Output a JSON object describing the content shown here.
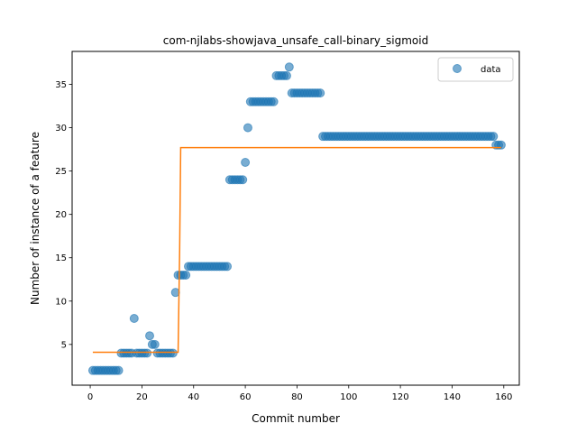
{
  "chart_data": {
    "type": "scatter",
    "title": "com-njlabs-showjava_unsafe_call-binary_sigmoid",
    "xlabel": "Commit number",
    "ylabel": "Number of instance of a feature",
    "xlim": [
      -7,
      166
    ],
    "ylim": [
      0.3,
      38.8
    ],
    "xticks": [
      0,
      20,
      40,
      60,
      80,
      100,
      120,
      140,
      160
    ],
    "yticks": [
      5,
      10,
      15,
      20,
      25,
      30,
      35
    ],
    "grid": false,
    "legend_position": "top-right",
    "legend": [
      "data"
    ],
    "series": [
      {
        "name": "data",
        "kind": "scatter",
        "color": "#1f77b4",
        "x": [
          1,
          2,
          3,
          4,
          5,
          6,
          7,
          8,
          9,
          10,
          11,
          12,
          13,
          14,
          15,
          16,
          17,
          18,
          19,
          20,
          21,
          22,
          23,
          24,
          25,
          26,
          27,
          28,
          29,
          30,
          31,
          32,
          33,
          34,
          35,
          36,
          37,
          38,
          39,
          40,
          41,
          42,
          43,
          44,
          45,
          46,
          47,
          48,
          49,
          50,
          51,
          52,
          53,
          54,
          55,
          56,
          57,
          58,
          59,
          60,
          61,
          62,
          63,
          64,
          65,
          66,
          67,
          68,
          69,
          70,
          71,
          72,
          73,
          74,
          75,
          76,
          77,
          78,
          79,
          80,
          81,
          82,
          83,
          84,
          85,
          86,
          87,
          88,
          89,
          90,
          91,
          92,
          93,
          94,
          95,
          96,
          97,
          98,
          99,
          100,
          101,
          102,
          103,
          104,
          105,
          106,
          107,
          108,
          109,
          110,
          111,
          112,
          113,
          114,
          115,
          116,
          117,
          118,
          119,
          120,
          121,
          122,
          123,
          124,
          125,
          126,
          127,
          128,
          129,
          130,
          131,
          132,
          133,
          134,
          135,
          136,
          137,
          138,
          139,
          140,
          141,
          142,
          143,
          144,
          145,
          146,
          147,
          148,
          149,
          150,
          151,
          152,
          153,
          154,
          155,
          156,
          157,
          158,
          159
        ],
        "y": [
          2,
          2,
          2,
          2,
          2,
          2,
          2,
          2,
          2,
          2,
          2,
          4,
          4,
          4,
          4,
          4,
          8,
          4,
          4,
          4,
          4,
          4,
          6,
          5,
          5,
          4,
          4,
          4,
          4,
          4,
          4,
          4,
          11,
          13,
          13,
          13,
          13,
          14,
          14,
          14,
          14,
          14,
          14,
          14,
          14,
          14,
          14,
          14,
          14,
          14,
          14,
          14,
          14,
          24,
          24,
          24,
          24,
          24,
          24,
          26,
          30,
          33,
          33,
          33,
          33,
          33,
          33,
          33,
          33,
          33,
          33,
          36,
          36,
          36,
          36,
          36,
          37,
          34,
          34,
          34,
          34,
          34,
          34,
          34,
          34,
          34,
          34,
          34,
          34,
          29,
          29,
          29,
          29,
          29,
          29,
          29,
          29,
          29,
          29,
          29,
          29,
          29,
          29,
          29,
          29,
          29,
          29,
          29,
          29,
          29,
          29,
          29,
          29,
          29,
          29,
          29,
          29,
          29,
          29,
          29,
          29,
          29,
          29,
          29,
          29,
          29,
          29,
          29,
          29,
          29,
          29,
          29,
          29,
          29,
          29,
          29,
          29,
          29,
          29,
          29,
          29,
          29,
          29,
          29,
          29,
          29,
          29,
          29,
          29,
          29,
          29,
          29,
          29,
          29,
          29,
          29,
          28,
          28,
          28
        ]
      },
      {
        "name": "",
        "kind": "line",
        "color": "#ff7f0e",
        "x": [
          1,
          34,
          34.6,
          35,
          159
        ],
        "y": [
          4.1,
          4.1,
          15.9,
          27.7,
          27.7
        ]
      }
    ]
  }
}
